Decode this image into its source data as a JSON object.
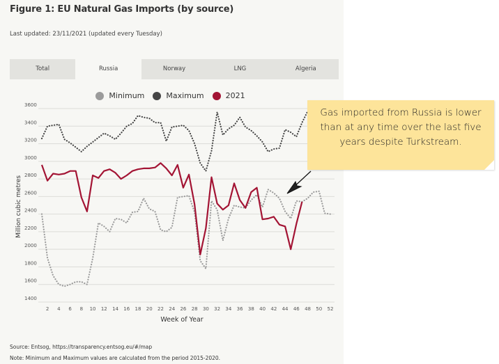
{
  "figure": {
    "title": "Figure 1: EU Natural Gas Imports (by source)",
    "last_updated": "Last updated: 23/11/2021 (updated every Tuesday)"
  },
  "tabs": [
    {
      "label": "Total",
      "active": false
    },
    {
      "label": "Russia",
      "active": true
    },
    {
      "label": "Norway",
      "active": false
    },
    {
      "label": "LNG",
      "active": false
    },
    {
      "label": "Algeria",
      "active": false
    }
  ],
  "footer": {
    "source": "Source: Entsog,  https://transparency.entsog.eu/#/map",
    "note": "Note: Minimum and Maximum values are calculated from the period 2015-2020."
  },
  "annotation": {
    "text": "Gas imported from Russia is lower than at any time over the last five years despite Turkstream."
  },
  "colors": {
    "minimum": "#9b9b9b",
    "maximum": "#454545",
    "y2021": "#a31434",
    "panel_bg": "#f7f7f4",
    "sticky_note": "#fde49a"
  },
  "chart_data": {
    "type": "line",
    "title": "",
    "xlabel": "Week of Year",
    "ylabel": "Million cubic metres",
    "xlim": [
      1,
      52
    ],
    "ylim": [
      1400,
      3600
    ],
    "x_ticks": [
      2,
      4,
      6,
      8,
      10,
      12,
      14,
      16,
      18,
      20,
      22,
      24,
      26,
      28,
      30,
      32,
      34,
      36,
      38,
      40,
      42,
      44,
      46,
      48,
      50,
      52
    ],
    "y_ticks": [
      1400,
      1600,
      1800,
      2000,
      2200,
      2400,
      2600,
      2800,
      3000,
      3200,
      3400,
      3600
    ],
    "grid": true,
    "legend": {
      "placement": "top-center",
      "entries": [
        "Minimum",
        "Maximum",
        "2021"
      ]
    },
    "series": [
      {
        "name": "Minimum",
        "style": "dotted",
        "x": [
          1,
          2,
          3,
          4,
          5,
          6,
          7,
          8,
          9,
          10,
          11,
          12,
          13,
          14,
          15,
          16,
          17,
          18,
          19,
          20,
          21,
          22,
          23,
          24,
          25,
          26,
          27,
          28,
          29,
          30,
          31,
          32,
          33,
          34,
          35,
          36,
          37,
          38,
          39,
          40,
          41,
          42,
          43,
          44,
          45,
          46,
          47,
          48,
          49,
          50,
          51,
          52
        ],
        "values": [
          2400,
          1900,
          1700,
          1600,
          1580,
          1600,
          1630,
          1630,
          1600,
          1900,
          2300,
          2260,
          2200,
          2350,
          2340,
          2300,
          2420,
          2430,
          2580,
          2460,
          2430,
          2220,
          2200,
          2250,
          2590,
          2600,
          2610,
          2420,
          1870,
          1780,
          2550,
          2450,
          2100,
          2350,
          2500,
          2480,
          2470,
          2560,
          2620,
          2480,
          2680,
          2640,
          2580,
          2430,
          2350,
          2550,
          2540,
          2580,
          2650,
          2660,
          2410,
          2400
        ]
      },
      {
        "name": "Maximum",
        "style": "dotted",
        "x": [
          1,
          2,
          3,
          4,
          5,
          6,
          7,
          8,
          9,
          10,
          11,
          12,
          13,
          14,
          15,
          16,
          17,
          18,
          19,
          20,
          21,
          22,
          23,
          24,
          25,
          26,
          27,
          28,
          29,
          30,
          31,
          32,
          33,
          34,
          35,
          36,
          37,
          38,
          39,
          40,
          41,
          42,
          43,
          44,
          45,
          46,
          47,
          48
        ],
        "values": [
          3260,
          3400,
          3410,
          3420,
          3250,
          3210,
          3160,
          3110,
          3170,
          3220,
          3270,
          3320,
          3290,
          3250,
          3320,
          3400,
          3430,
          3520,
          3500,
          3490,
          3440,
          3440,
          3230,
          3390,
          3400,
          3410,
          3350,
          3200,
          2980,
          2890,
          3120,
          3560,
          3300,
          3370,
          3410,
          3500,
          3390,
          3350,
          3290,
          3220,
          3110,
          3140,
          3150,
          3360,
          3330,
          3280,
          3440,
          3570
        ]
      },
      {
        "name": "2021",
        "style": "solid",
        "x": [
          1,
          2,
          3,
          4,
          5,
          6,
          7,
          8,
          9,
          10,
          11,
          12,
          13,
          14,
          15,
          16,
          17,
          18,
          19,
          20,
          21,
          22,
          23,
          24,
          25,
          26,
          27,
          28,
          29,
          30,
          31,
          32,
          33,
          34,
          35,
          36,
          37,
          38,
          39,
          40,
          41,
          42,
          43,
          44,
          45,
          46,
          47
        ],
        "values": [
          2960,
          2780,
          2860,
          2850,
          2860,
          2890,
          2890,
          2590,
          2430,
          2840,
          2810,
          2890,
          2910,
          2870,
          2800,
          2840,
          2890,
          2910,
          2920,
          2920,
          2930,
          2980,
          2920,
          2840,
          2960,
          2700,
          2850,
          2510,
          1940,
          2240,
          2820,
          2520,
          2450,
          2500,
          2750,
          2560,
          2470,
          2650,
          2700,
          2340,
          2350,
          2370,
          2280,
          2260,
          2000,
          2290,
          2540
        ]
      }
    ]
  }
}
